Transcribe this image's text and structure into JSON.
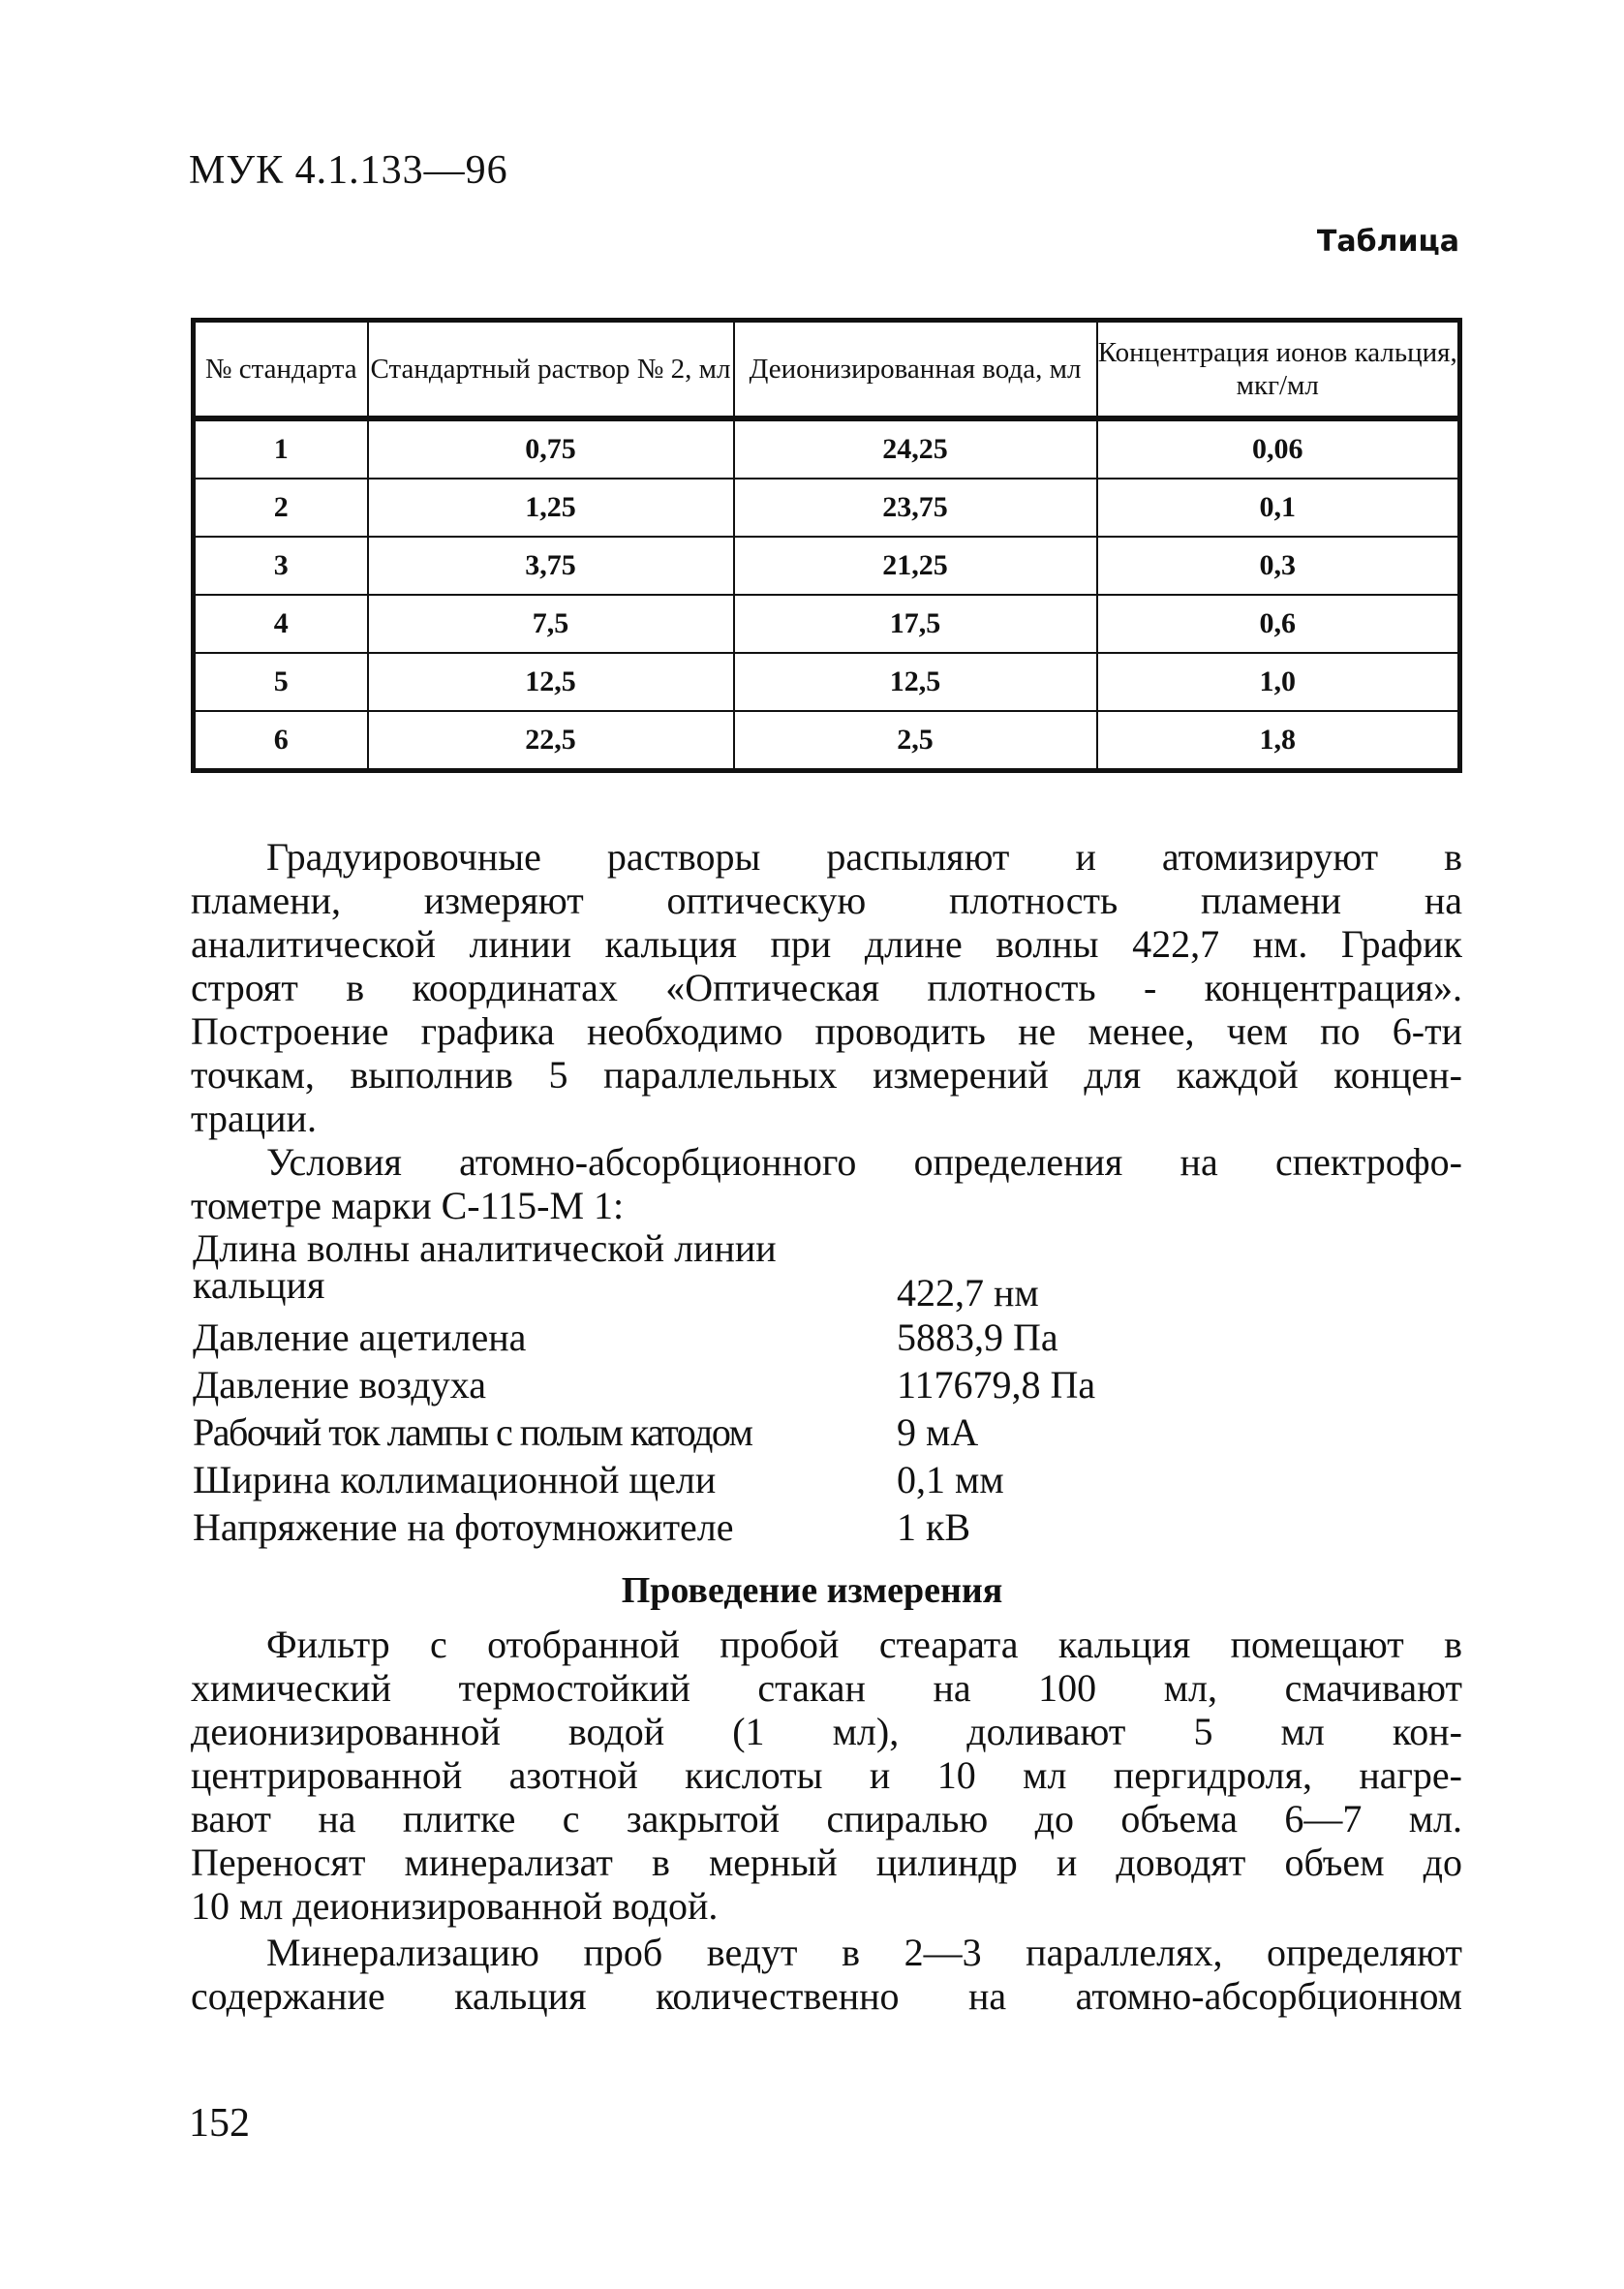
{
  "header": {
    "doc_code": "МУК 4.1.133—96",
    "table_caption": "Таблица"
  },
  "table": {
    "columns": [
      "№ стандарта",
      "Стандартный раствор № 2, мл",
      "Деионизированная вода, мл",
      "Концентрация ионов кальция, мкг/мл"
    ],
    "rows": [
      [
        "1",
        "0,75",
        "24,25",
        "0,06"
      ],
      [
        "2",
        "1,25",
        "23,75",
        "0,1"
      ],
      [
        "3",
        "3,75",
        "21,25",
        "0,3"
      ],
      [
        "4",
        "7,5",
        "17,5",
        "0,6"
      ],
      [
        "5",
        "12,5",
        "12,5",
        "1,0"
      ],
      [
        "6",
        "22,5",
        "2,5",
        "1,8"
      ]
    ]
  },
  "paragraph1": [
    "Градуировочные растворы распыляют и атомизируют в",
    "пламени, измеряют оптическую плотность пламени на",
    "аналитической линии кальция при длине волны 422,7 нм. График",
    "строят в координатах «Оптическая плотность - концентрация».",
    "Построение графика необходимо проводить не менее, чем по 6-ти",
    "точкам, выполнив 5 параллельных измерений для каждой концен-",
    "трации."
  ],
  "paragraph2": [
    "Условия атомно-абсорбционного определения на спектрофо-",
    "тометре марки С-115-М 1:"
  ],
  "conditions": [
    {
      "label": "Длина волны аналитической линии кальция",
      "label_lines": [
        "Длина волны аналитической линии",
        "кальция"
      ],
      "value": "422,7 нм"
    },
    {
      "label": "Давление ацетилена",
      "value": "5883,9 Па"
    },
    {
      "label": "Давление воздуха",
      "value": "117679,8 Па"
    },
    {
      "label": "Рабочий ток лампы с полым катодом",
      "value": "9 мА"
    },
    {
      "label": "Ширина коллимационной щели",
      "value": "0,1 мм"
    },
    {
      "label": "Напряжение на фотоумножителе",
      "value": "1 кВ"
    }
  ],
  "section_heading": "Проведение измерения",
  "paragraph3": [
    "Фильтр с отобранной пробой стеарата кальция помещают в",
    "химический термостойкий стакан на 100 мл, смачивают",
    "деионизированной водой (1 мл), доливают 5 мл кон-",
    "центрированной азотной кислоты и 10 мл пергидроля, нагре-",
    "вают на плитке с закрытой спиралью до объема 6—7 мл.",
    "Переносят минерализат в мерный цилиндр и доводят объем до",
    "10 мл деионизированной водой."
  ],
  "paragraph4": [
    "Минерализацию проб ведут в 2—3 параллелях, определяют",
    "содержание кальция количественно на атомно-абсорбционном"
  ],
  "page_number": "152"
}
